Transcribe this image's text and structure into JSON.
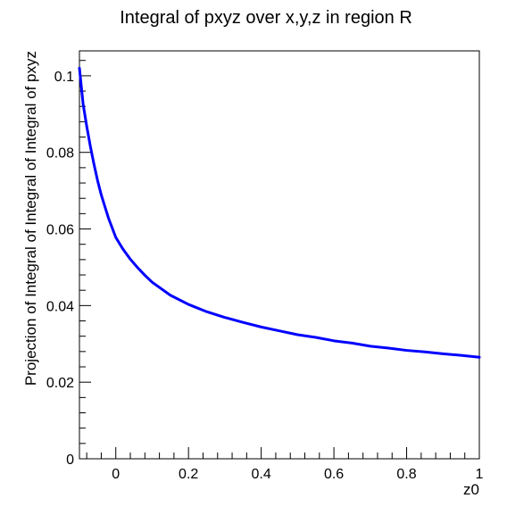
{
  "chart_data": {
    "type": "line",
    "title": "Integral of pxyz over x,y,z in region R",
    "xlabel": "z0",
    "ylabel": "Projection of Integral of Integral of Integral of pxyz",
    "xlim": [
      -0.1,
      1.0
    ],
    "ylim": [
      0,
      0.1065
    ],
    "x_ticks": [
      0,
      0.2,
      0.4,
      0.6,
      0.8,
      1
    ],
    "x_tick_labels": [
      "0",
      "0.2",
      "0.4",
      "0.6",
      "0.8",
      "1"
    ],
    "y_ticks": [
      0,
      0.02,
      0.04,
      0.06,
      0.08,
      0.1
    ],
    "y_tick_labels": [
      "0",
      "0.02",
      "0.04",
      "0.06",
      "0.08",
      "0.1"
    ],
    "grid": false,
    "legend": "none",
    "line_color": "#0000ff",
    "series": [
      {
        "x": [
          -0.1,
          -0.09,
          -0.08,
          -0.07,
          -0.06,
          -0.05,
          -0.04,
          -0.02,
          0.0,
          0.02,
          0.04,
          0.06,
          0.08,
          0.1,
          0.15,
          0.2,
          0.25,
          0.3,
          0.35,
          0.4,
          0.45,
          0.5,
          0.55,
          0.6,
          0.65,
          0.7,
          0.75,
          0.8,
          0.85,
          0.9,
          0.95,
          1.0
        ],
        "y": [
          0.102,
          0.0927,
          0.0868,
          0.0816,
          0.0769,
          0.0726,
          0.0689,
          0.0628,
          0.0578,
          0.0547,
          0.0521,
          0.0499,
          0.0479,
          0.0461,
          0.0427,
          0.0403,
          0.0384,
          0.0369,
          0.0356,
          0.0344,
          0.0334,
          0.0324,
          0.0317,
          0.0308,
          0.0302,
          0.0294,
          0.0289,
          0.0283,
          0.0279,
          0.0274,
          0.027,
          0.0265
        ]
      }
    ]
  }
}
